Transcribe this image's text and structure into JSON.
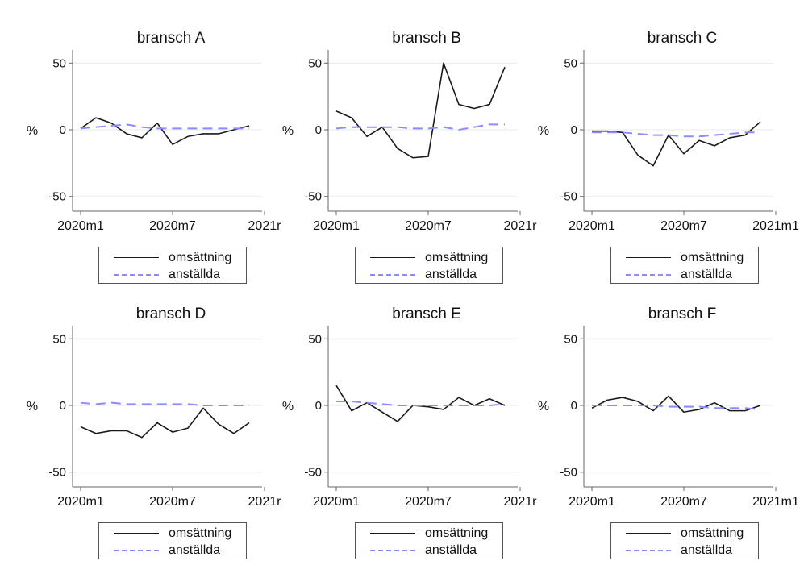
{
  "y_unit_label": "%",
  "colors": {
    "omsattning": "#1a1a1a",
    "anstallda": "#8c8cff",
    "grid": "#eaeaea",
    "axis": "#666666"
  },
  "legend": {
    "series1": "omsättning",
    "series2": "anställda"
  },
  "chart_data": [
    {
      "type": "line",
      "title": "bransch A",
      "ylabel": "%",
      "x": [
        "2020m1",
        "2020m2",
        "2020m3",
        "2020m4",
        "2020m5",
        "2020m6",
        "2020m7",
        "2020m8",
        "2020m9",
        "2020m10",
        "2020m11",
        "2020m12"
      ],
      "x_ticks": [
        "2020m1",
        "2020m7",
        "2021r"
      ],
      "y_ticks": [
        50,
        0,
        -50
      ],
      "ylim": [
        -55,
        55
      ],
      "series": [
        {
          "name": "omsättning",
          "values": [
            1,
            9,
            5,
            -3,
            -6,
            5,
            -11,
            -5,
            -3,
            -3,
            0,
            3
          ]
        },
        {
          "name": "anställda",
          "values": [
            1,
            2,
            3,
            4,
            2,
            1,
            1,
            1,
            1,
            1,
            1,
            1
          ]
        }
      ]
    },
    {
      "type": "line",
      "title": "bransch B",
      "ylabel": "%",
      "x": [
        "2020m1",
        "2020m2",
        "2020m3",
        "2020m4",
        "2020m5",
        "2020m6",
        "2020m7",
        "2020m8",
        "2020m9",
        "2020m10",
        "2020m11",
        "2020m12"
      ],
      "x_ticks": [
        "2020m1",
        "2020m7",
        "2021r"
      ],
      "y_ticks": [
        50,
        0,
        -50
      ],
      "ylim": [
        -55,
        55
      ],
      "series": [
        {
          "name": "omsättning",
          "values": [
            14,
            9,
            -5,
            2,
            -14,
            -21,
            -20,
            50,
            19,
            16,
            19,
            47
          ]
        },
        {
          "name": "anställda",
          "values": [
            1,
            2,
            2,
            2,
            2,
            1,
            1,
            2,
            0,
            2,
            4,
            4
          ]
        }
      ]
    },
    {
      "type": "line",
      "title": "bransch C",
      "ylabel": "%",
      "x": [
        "2020m1",
        "2020m2",
        "2020m3",
        "2020m4",
        "2020m5",
        "2020m6",
        "2020m7",
        "2020m8",
        "2020m9",
        "2020m10",
        "2020m11",
        "2020m12"
      ],
      "x_ticks": [
        "2020m1",
        "2020m7",
        "2021m1"
      ],
      "y_ticks": [
        50,
        0,
        -50
      ],
      "ylim": [
        -55,
        55
      ],
      "series": [
        {
          "name": "omsättning",
          "values": [
            -1,
            -1,
            -2,
            -19,
            -27,
            -4,
            -18,
            -8,
            -12,
            -6,
            -4,
            6
          ]
        },
        {
          "name": "anställda",
          "values": [
            -2,
            -2,
            -2,
            -3,
            -4,
            -4,
            -5,
            -5,
            -4,
            -3,
            -2,
            -2
          ]
        }
      ]
    },
    {
      "type": "line",
      "title": "bransch D",
      "ylabel": "%",
      "x": [
        "2020m1",
        "2020m2",
        "2020m3",
        "2020m4",
        "2020m5",
        "2020m6",
        "2020m7",
        "2020m8",
        "2020m9",
        "2020m10",
        "2020m11",
        "2020m12"
      ],
      "x_ticks": [
        "2020m1",
        "2020m7",
        "2021r"
      ],
      "y_ticks": [
        50,
        0,
        -50
      ],
      "ylim": [
        -55,
        55
      ],
      "series": [
        {
          "name": "omsättning",
          "values": [
            -16,
            -21,
            -19,
            -19,
            -24,
            -13,
            -20,
            -17,
            -2,
            -14,
            -21,
            -13
          ]
        },
        {
          "name": "anställda",
          "values": [
            2,
            1,
            2,
            1,
            1,
            1,
            1,
            1,
            0,
            0,
            0,
            0
          ]
        }
      ]
    },
    {
      "type": "line",
      "title": "bransch E",
      "ylabel": "%",
      "x": [
        "2020m1",
        "2020m2",
        "2020m3",
        "2020m4",
        "2020m5",
        "2020m6",
        "2020m7",
        "2020m8",
        "2020m9",
        "2020m10",
        "2020m11",
        "2020m12"
      ],
      "x_ticks": [
        "2020m1",
        "2020m7",
        "2021r"
      ],
      "y_ticks": [
        50,
        0,
        -50
      ],
      "ylim": [
        -55,
        55
      ],
      "series": [
        {
          "name": "omsättning",
          "values": [
            15,
            -4,
            2,
            -5,
            -12,
            0,
            -1,
            -3,
            6,
            0,
            5,
            0
          ]
        },
        {
          "name": "anställda",
          "values": [
            3,
            3,
            2,
            1,
            0,
            0,
            0,
            0,
            0,
            0,
            0,
            1
          ]
        }
      ]
    },
    {
      "type": "line",
      "title": "bransch F",
      "ylabel": "%",
      "x": [
        "2020m1",
        "2020m2",
        "2020m3",
        "2020m4",
        "2020m5",
        "2020m6",
        "2020m7",
        "2020m8",
        "2020m9",
        "2020m10",
        "2020m11",
        "2020m12"
      ],
      "x_ticks": [
        "2020m1",
        "2020m7",
        "2021m1"
      ],
      "y_ticks": [
        50,
        0,
        -50
      ],
      "ylim": [
        -55,
        55
      ],
      "series": [
        {
          "name": "omsättning",
          "values": [
            -2,
            4,
            6,
            3,
            -4,
            7,
            -5,
            -3,
            2,
            -4,
            -4,
            0
          ]
        },
        {
          "name": "anställda",
          "values": [
            0,
            0,
            0,
            0,
            0,
            -1,
            -1,
            -1,
            -2,
            -2,
            -2,
            -3
          ]
        }
      ]
    }
  ]
}
